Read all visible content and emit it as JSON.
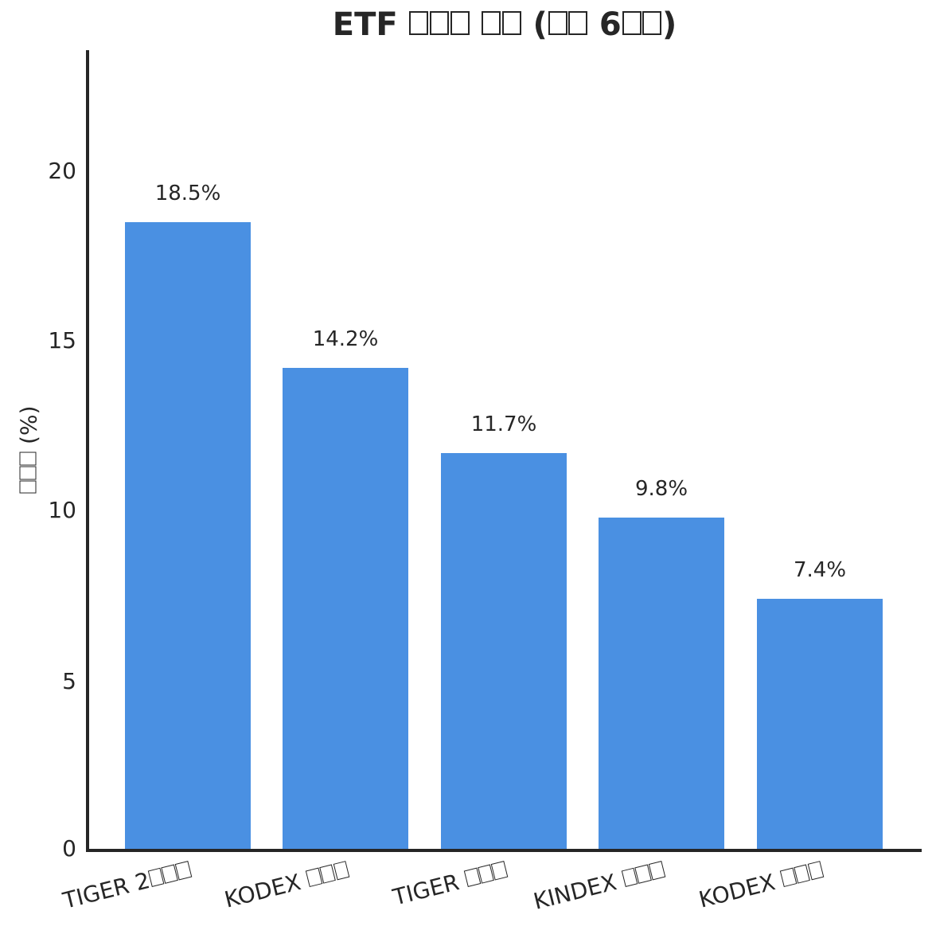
{
  "chart_data": {
    "type": "bar",
    "title": "ETF □□□ □□ (□□ 6□□)",
    "categories": [
      "TIGER 2□□□",
      "KODEX □□□",
      "TIGER □□□",
      "KINDEX □□□",
      "KODEX □□□"
    ],
    "values": [
      18.5,
      14.2,
      11.7,
      9.8,
      7.4
    ],
    "value_labels": [
      "18.5%",
      "14.2%",
      "11.7%",
      "9.8%",
      "7.4%"
    ],
    "xlabel": "",
    "ylabel": "□□□ (%)",
    "ylim": [
      0,
      23.5
    ],
    "yticks": [
      0,
      5,
      10,
      15,
      20
    ],
    "ytick_labels": [
      "0",
      "5",
      "10",
      "15",
      "20"
    ],
    "grid": false,
    "legend_position": "none",
    "bar_color": "#4a90e2",
    "text_color": "#262626",
    "axis_color": "#262626",
    "background_color": "#ffffff"
  }
}
